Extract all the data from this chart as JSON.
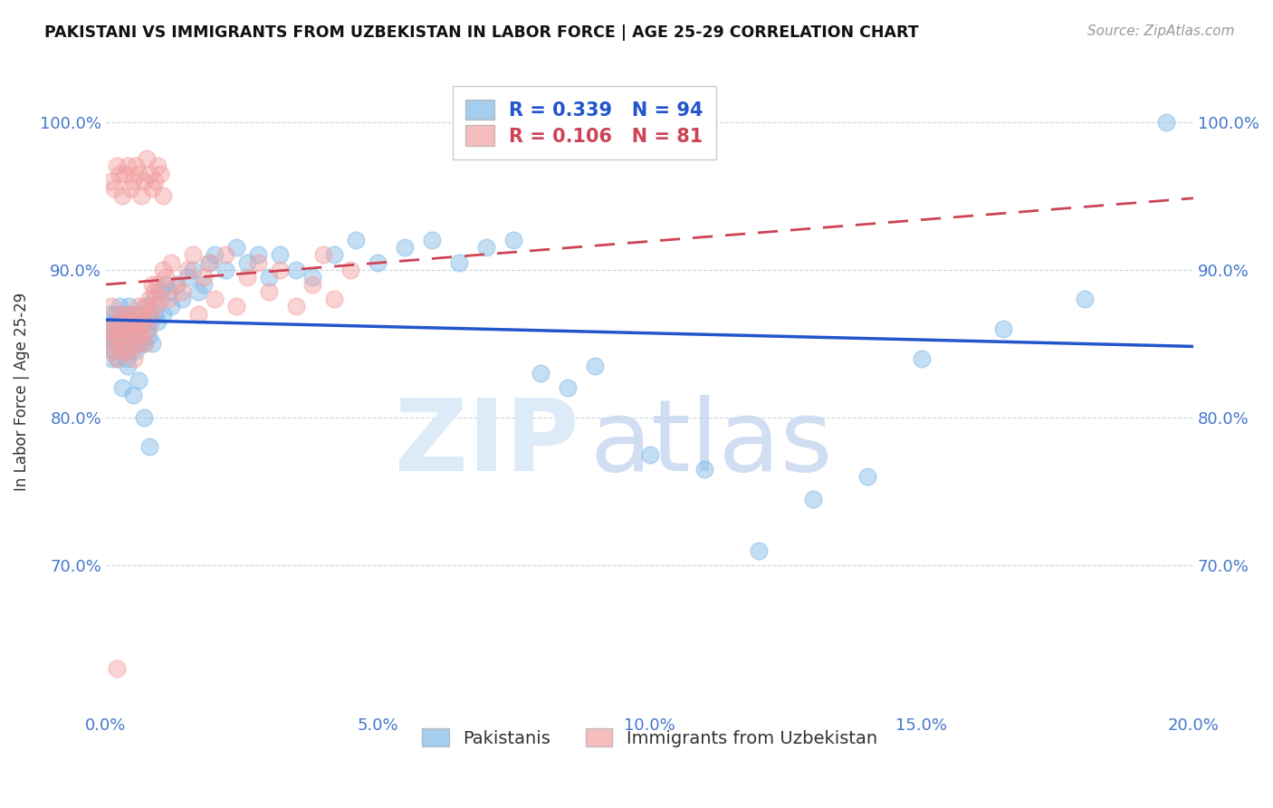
{
  "title": "PAKISTANI VS IMMIGRANTS FROM UZBEKISTAN IN LABOR FORCE | AGE 25-29 CORRELATION CHART",
  "source": "Source: ZipAtlas.com",
  "ylabel": "In Labor Force | Age 25-29",
  "x_tick_labels": [
    "0.0%",
    "5.0%",
    "10.0%",
    "15.0%",
    "20.0%"
  ],
  "x_tick_values": [
    0.0,
    5.0,
    10.0,
    15.0,
    20.0
  ],
  "y_tick_labels": [
    "70.0%",
    "80.0%",
    "90.0%",
    "100.0%"
  ],
  "y_tick_values": [
    70.0,
    80.0,
    90.0,
    100.0
  ],
  "xlim": [
    0.0,
    20.0
  ],
  "ylim": [
    60.0,
    103.5
  ],
  "legend_blue_label": "Pakistanis",
  "legend_pink_label": "Immigrants from Uzbekistan",
  "R_blue": 0.339,
  "N_blue": 94,
  "R_pink": 0.106,
  "N_pink": 81,
  "blue_color": "#7EB8E8",
  "pink_color": "#F4A0A0",
  "trend_blue_color": "#2255CC",
  "trend_pink_color": "#CC4455",
  "watermark_zip": "ZIP",
  "watermark_atlas": "atlas",
  "watermark_color": "#DDEAF8",
  "background_color": "#FFFFFF",
  "blue_points_x": [
    0.05,
    0.08,
    0.1,
    0.12,
    0.15,
    0.15,
    0.18,
    0.2,
    0.2,
    0.22,
    0.25,
    0.25,
    0.28,
    0.3,
    0.3,
    0.32,
    0.35,
    0.35,
    0.38,
    0.4,
    0.4,
    0.42,
    0.45,
    0.45,
    0.48,
    0.5,
    0.5,
    0.52,
    0.55,
    0.55,
    0.58,
    0.6,
    0.62,
    0.65,
    0.68,
    0.7,
    0.72,
    0.75,
    0.78,
    0.8,
    0.82,
    0.85,
    0.88,
    0.9,
    0.95,
    1.0,
    1.05,
    1.1,
    1.15,
    1.2,
    1.3,
    1.4,
    1.5,
    1.6,
    1.7,
    1.8,
    1.9,
    2.0,
    2.2,
    2.4,
    2.6,
    2.8,
    3.0,
    3.2,
    3.5,
    3.8,
    4.2,
    4.6,
    5.0,
    5.5,
    6.0,
    6.5,
    7.0,
    7.5,
    8.0,
    8.5,
    9.0,
    10.0,
    11.0,
    12.0,
    13.0,
    14.0,
    15.0,
    16.5,
    18.0,
    19.5,
    0.1,
    0.2,
    0.3,
    0.4,
    0.5,
    0.6,
    0.7,
    0.8
  ],
  "blue_points_y": [
    85.5,
    87.0,
    86.0,
    84.5,
    86.5,
    85.0,
    87.0,
    85.5,
    86.5,
    84.0,
    86.0,
    87.5,
    85.5,
    84.5,
    86.5,
    85.0,
    87.0,
    85.5,
    84.0,
    86.5,
    85.0,
    87.5,
    86.0,
    84.5,
    85.5,
    87.0,
    85.5,
    86.5,
    84.5,
    87.0,
    85.5,
    86.0,
    85.0,
    87.0,
    86.5,
    85.0,
    87.5,
    86.0,
    85.5,
    87.0,
    86.5,
    85.0,
    88.0,
    87.0,
    86.5,
    88.5,
    87.0,
    89.0,
    88.5,
    87.5,
    89.0,
    88.0,
    89.5,
    90.0,
    88.5,
    89.0,
    90.5,
    91.0,
    90.0,
    91.5,
    90.5,
    91.0,
    89.5,
    91.0,
    90.0,
    89.5,
    91.0,
    92.0,
    90.5,
    91.5,
    92.0,
    90.5,
    91.5,
    92.0,
    83.0,
    82.0,
    83.5,
    77.5,
    76.5,
    71.0,
    74.5,
    76.0,
    84.0,
    86.0,
    88.0,
    100.0,
    84.0,
    85.0,
    82.0,
    83.5,
    81.5,
    82.5,
    80.0,
    78.0
  ],
  "pink_points_x": [
    0.05,
    0.08,
    0.1,
    0.12,
    0.15,
    0.18,
    0.2,
    0.22,
    0.25,
    0.28,
    0.3,
    0.32,
    0.35,
    0.38,
    0.4,
    0.42,
    0.45,
    0.48,
    0.5,
    0.52,
    0.55,
    0.58,
    0.6,
    0.62,
    0.65,
    0.68,
    0.7,
    0.72,
    0.75,
    0.78,
    0.8,
    0.82,
    0.85,
    0.88,
    0.9,
    0.95,
    1.0,
    1.05,
    1.1,
    1.15,
    1.2,
    1.3,
    1.4,
    1.5,
    1.6,
    1.7,
    1.8,
    1.9,
    2.0,
    2.2,
    2.4,
    2.6,
    2.8,
    3.0,
    3.2,
    3.5,
    3.8,
    4.0,
    4.2,
    4.5,
    0.1,
    0.15,
    0.2,
    0.25,
    0.3,
    0.35,
    0.4,
    0.45,
    0.5,
    0.55,
    0.6,
    0.65,
    0.7,
    0.75,
    0.8,
    0.85,
    0.9,
    0.95,
    1.0,
    1.05,
    0.2
  ],
  "pink_points_y": [
    86.0,
    85.0,
    87.5,
    84.5,
    86.0,
    85.5,
    84.0,
    86.5,
    85.5,
    87.0,
    84.5,
    86.0,
    85.0,
    87.0,
    86.5,
    84.5,
    85.5,
    87.0,
    86.0,
    84.0,
    86.5,
    85.0,
    87.5,
    86.0,
    85.5,
    87.0,
    86.5,
    85.0,
    87.5,
    86.0,
    88.0,
    87.0,
    89.0,
    88.5,
    87.5,
    89.0,
    88.0,
    90.0,
    89.5,
    88.0,
    90.5,
    89.0,
    88.5,
    90.0,
    91.0,
    87.0,
    89.5,
    90.5,
    88.0,
    91.0,
    87.5,
    89.5,
    90.5,
    88.5,
    90.0,
    87.5,
    89.0,
    91.0,
    88.0,
    90.0,
    96.0,
    95.5,
    97.0,
    96.5,
    95.0,
    96.5,
    97.0,
    95.5,
    96.0,
    97.0,
    96.5,
    95.0,
    96.0,
    97.5,
    96.5,
    95.5,
    96.0,
    97.0,
    96.5,
    95.0,
    63.0
  ]
}
